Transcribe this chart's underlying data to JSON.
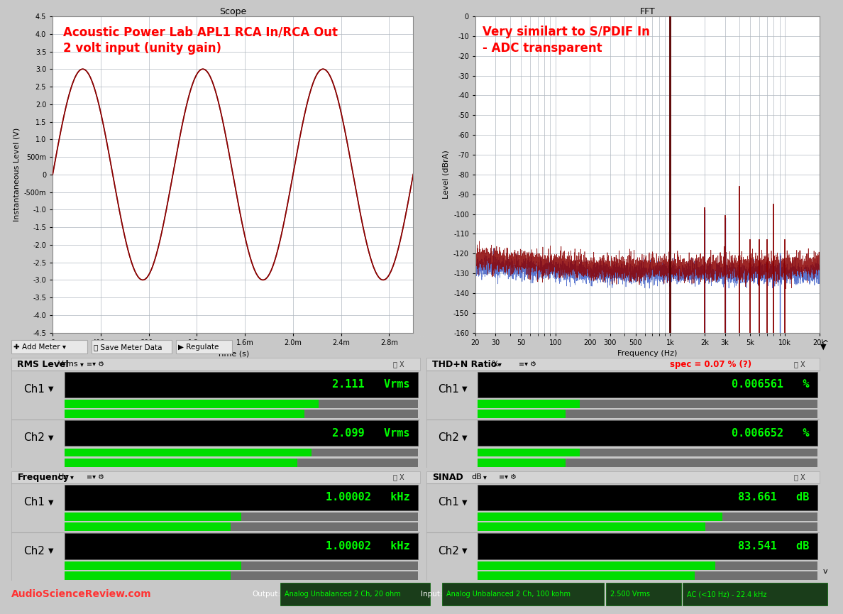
{
  "scope_title": "Scope",
  "fft_title": "FFT",
  "scope_annotation": "Acoustic Power Lab APL1 RCA In/RCA Out\n2 volt input (unity gain)",
  "fft_annotation": "Very similart to S/PDIF In\n- ADC transparent",
  "scope_ylabel": "Instantaneous Level (V)",
  "scope_xlabel": "Time (s)",
  "fft_ylabel": "Level (dBrA)",
  "fft_xlabel": "Frequency (Hz)",
  "scope_ylim": [
    -4.5,
    4.5
  ],
  "scope_xlim": [
    0,
    0.003
  ],
  "fft_ylim": [
    -160,
    0
  ],
  "scope_yticks": [
    -4.5,
    -4.0,
    -3.5,
    -3.0,
    -2.5,
    -2.0,
    -1.5,
    -1.0,
    -0.5,
    0,
    0.5,
    1.0,
    1.5,
    2.0,
    2.5,
    3.0,
    3.5,
    4.0,
    4.5
  ],
  "scope_ytick_labels": [
    "-4.5",
    "-4.0",
    "-3.5",
    "-3.0",
    "-2.5",
    "-2.0",
    "-1.5",
    "-1.0",
    "-500m",
    "0",
    "500m",
    "1.0",
    "1.5",
    "2.0",
    "2.5",
    "3.0",
    "3.5",
    "4.0",
    "4.5"
  ],
  "scope_xticks": [
    0,
    0.0004,
    0.0008,
    0.0012,
    0.0016,
    0.002,
    0.0024,
    0.0028
  ],
  "scope_xtick_labels": [
    "0",
    "400u",
    "800u",
    "1.2m",
    "1.6m",
    "2.0m",
    "2.4m",
    "2.8m"
  ],
  "sine_amplitude": 3.0,
  "sine_frequency": 1000,
  "sine_color1": "#8B0000",
  "bg_color": "#c8c8c8",
  "plot_bg": "#ffffff",
  "grid_color": "#b0b8c0",
  "meter_bg": "#c0c0c0",
  "panel_header_bg": "#d0d0d0",
  "black_display": "#000000",
  "green_text": "#00ff00",
  "meter_bar_green": "#00dd00",
  "meter_bar_gray": "#707070",
  "rms_ch1": "2.111   Vrms",
  "rms_ch2": "2.099   Vrms",
  "thdn_ch1": "0.006561   %",
  "thdn_ch2": "0.006652   %",
  "freq_ch1": "1.00002   kHz",
  "freq_ch2": "1.00002   kHz",
  "sinad_ch1": "83.661   dB",
  "sinad_ch2": "83.541   dB",
  "rms_bar1": 0.72,
  "rms_bar2": 0.7,
  "thdn_bar1": 0.3,
  "thdn_bar2": 0.3,
  "freq_bar1": 0.5,
  "freq_bar2": 0.5,
  "sinad_bar1": 0.72,
  "sinad_bar2": 0.7,
  "footer_asr": "AudioScienceReview.com",
  "footer_output_label": "Output:",
  "footer_output_val": "Analog Unbalanced 2 Ch, 20 ohm",
  "footer_input_label": "Input:",
  "footer_input_val": "Analog Unbalanced 2 Ch, 100 kohm",
  "footer_voltage": "2.500 Vrms",
  "footer_ac": "AC (<10 Hz) - 22.4 kHz",
  "spec_text": "spec = 0.07 % (?)"
}
